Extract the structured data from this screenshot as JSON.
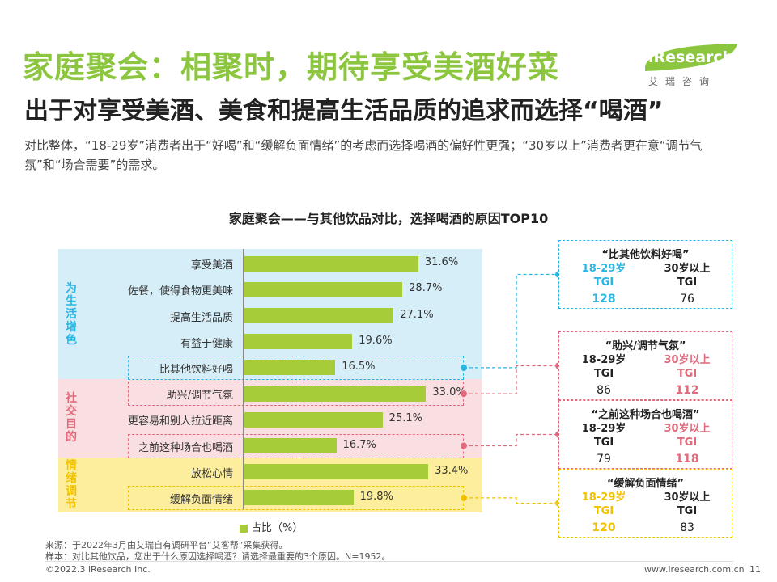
{
  "header": {
    "title": "家庭聚会：相聚时，期待享受美酒好菜",
    "subtitle": "出于对享受美酒、美食和提高生活品质的追求而选择“喝酒”",
    "description": "对比整体，“18-29岁”消费者出于“好喝”和“缓解负面情绪”的考虑而选择喝酒的偏好性更强；“30岁以上”消费者更在意“调节气氛”和“场合需要”的需求。"
  },
  "logo": {
    "name": "iResearch",
    "cn": "艾瑞咨询"
  },
  "colors": {
    "accent": "#8cc63f",
    "bar": "#a6cc3a",
    "band_blue": "#d6eef8",
    "band_pink": "#f9dfe1",
    "band_yellow": "#fcee9c",
    "label_blue": "#29b6e3",
    "label_pink": "#e06b7d",
    "label_yellow": "#f2c200"
  },
  "chart_data": {
    "type": "bar",
    "title": "家庭聚会——与其他饮品对比，选择喝酒的原因TOP10",
    "categories": [
      "享受美酒",
      "佐餐，使得食物更美味",
      "提高生活品质",
      "有益于健康",
      "比其他饮料好喝",
      "助兴/调节气氛",
      "更容易和别人拉近距离",
      "之前这种场合也喝酒",
      "放松心情",
      "缓解负面情绪"
    ],
    "values": [
      31.6,
      28.7,
      27.1,
      19.6,
      16.5,
      33.0,
      25.1,
      16.7,
      33.4,
      19.8
    ],
    "value_labels": [
      "31.6%",
      "28.7%",
      "27.1%",
      "19.6%",
      "16.5%",
      "33.0%",
      "25.1%",
      "16.7%",
      "33.4%",
      "19.8%"
    ],
    "groups": [
      {
        "label": "为生活增色",
        "start": 0,
        "end": 4
      },
      {
        "label": "社交目的",
        "start": 5,
        "end": 7
      },
      {
        "label": "情绪调节",
        "start": 8,
        "end": 9
      }
    ],
    "legend": "占比（%）",
    "xlim": [
      0,
      45
    ],
    "tgi_boxes": [
      {
        "title": "“比其他饮料好喝”",
        "category_index": 4,
        "color": "#29b6e3",
        "highlight": "left",
        "left_label": "18-29岁",
        "right_label": "30岁以上",
        "tgi_label": "TGI",
        "left_value": "128",
        "right_value": "76"
      },
      {
        "title": "“助兴/调节气氛”",
        "category_index": 5,
        "color": "#e06b7d",
        "highlight": "right",
        "left_label": "18-29岁",
        "right_label": "30岁以上",
        "tgi_label": "TGI",
        "left_value": "86",
        "right_value": "112"
      },
      {
        "title": "“之前这种场合也喝酒”",
        "category_index": 7,
        "color": "#e06b7d",
        "highlight": "right",
        "left_label": "18-29岁",
        "right_label": "30岁以上",
        "tgi_label": "TGI",
        "left_value": "79",
        "right_value": "118"
      },
      {
        "title": "“缓解负面情绪”",
        "category_index": 9,
        "color": "#f2c200",
        "highlight": "left",
        "left_label": "18-29岁",
        "right_label": "30岁以上",
        "tgi_label": "TGI",
        "left_value": "120",
        "right_value": "83"
      }
    ]
  },
  "footer": {
    "source": "来源：于2022年3月由艾瑞自有调研平台“艾客帮”采集获得。",
    "sample": "样本：对比其他饮品，您出于什么原因选择喝酒？请选择最重要的3个原因。N=1952。",
    "copyright": "©2022.3 iResearch Inc.",
    "url": "www.iresearch.com.cn",
    "page": "11"
  }
}
